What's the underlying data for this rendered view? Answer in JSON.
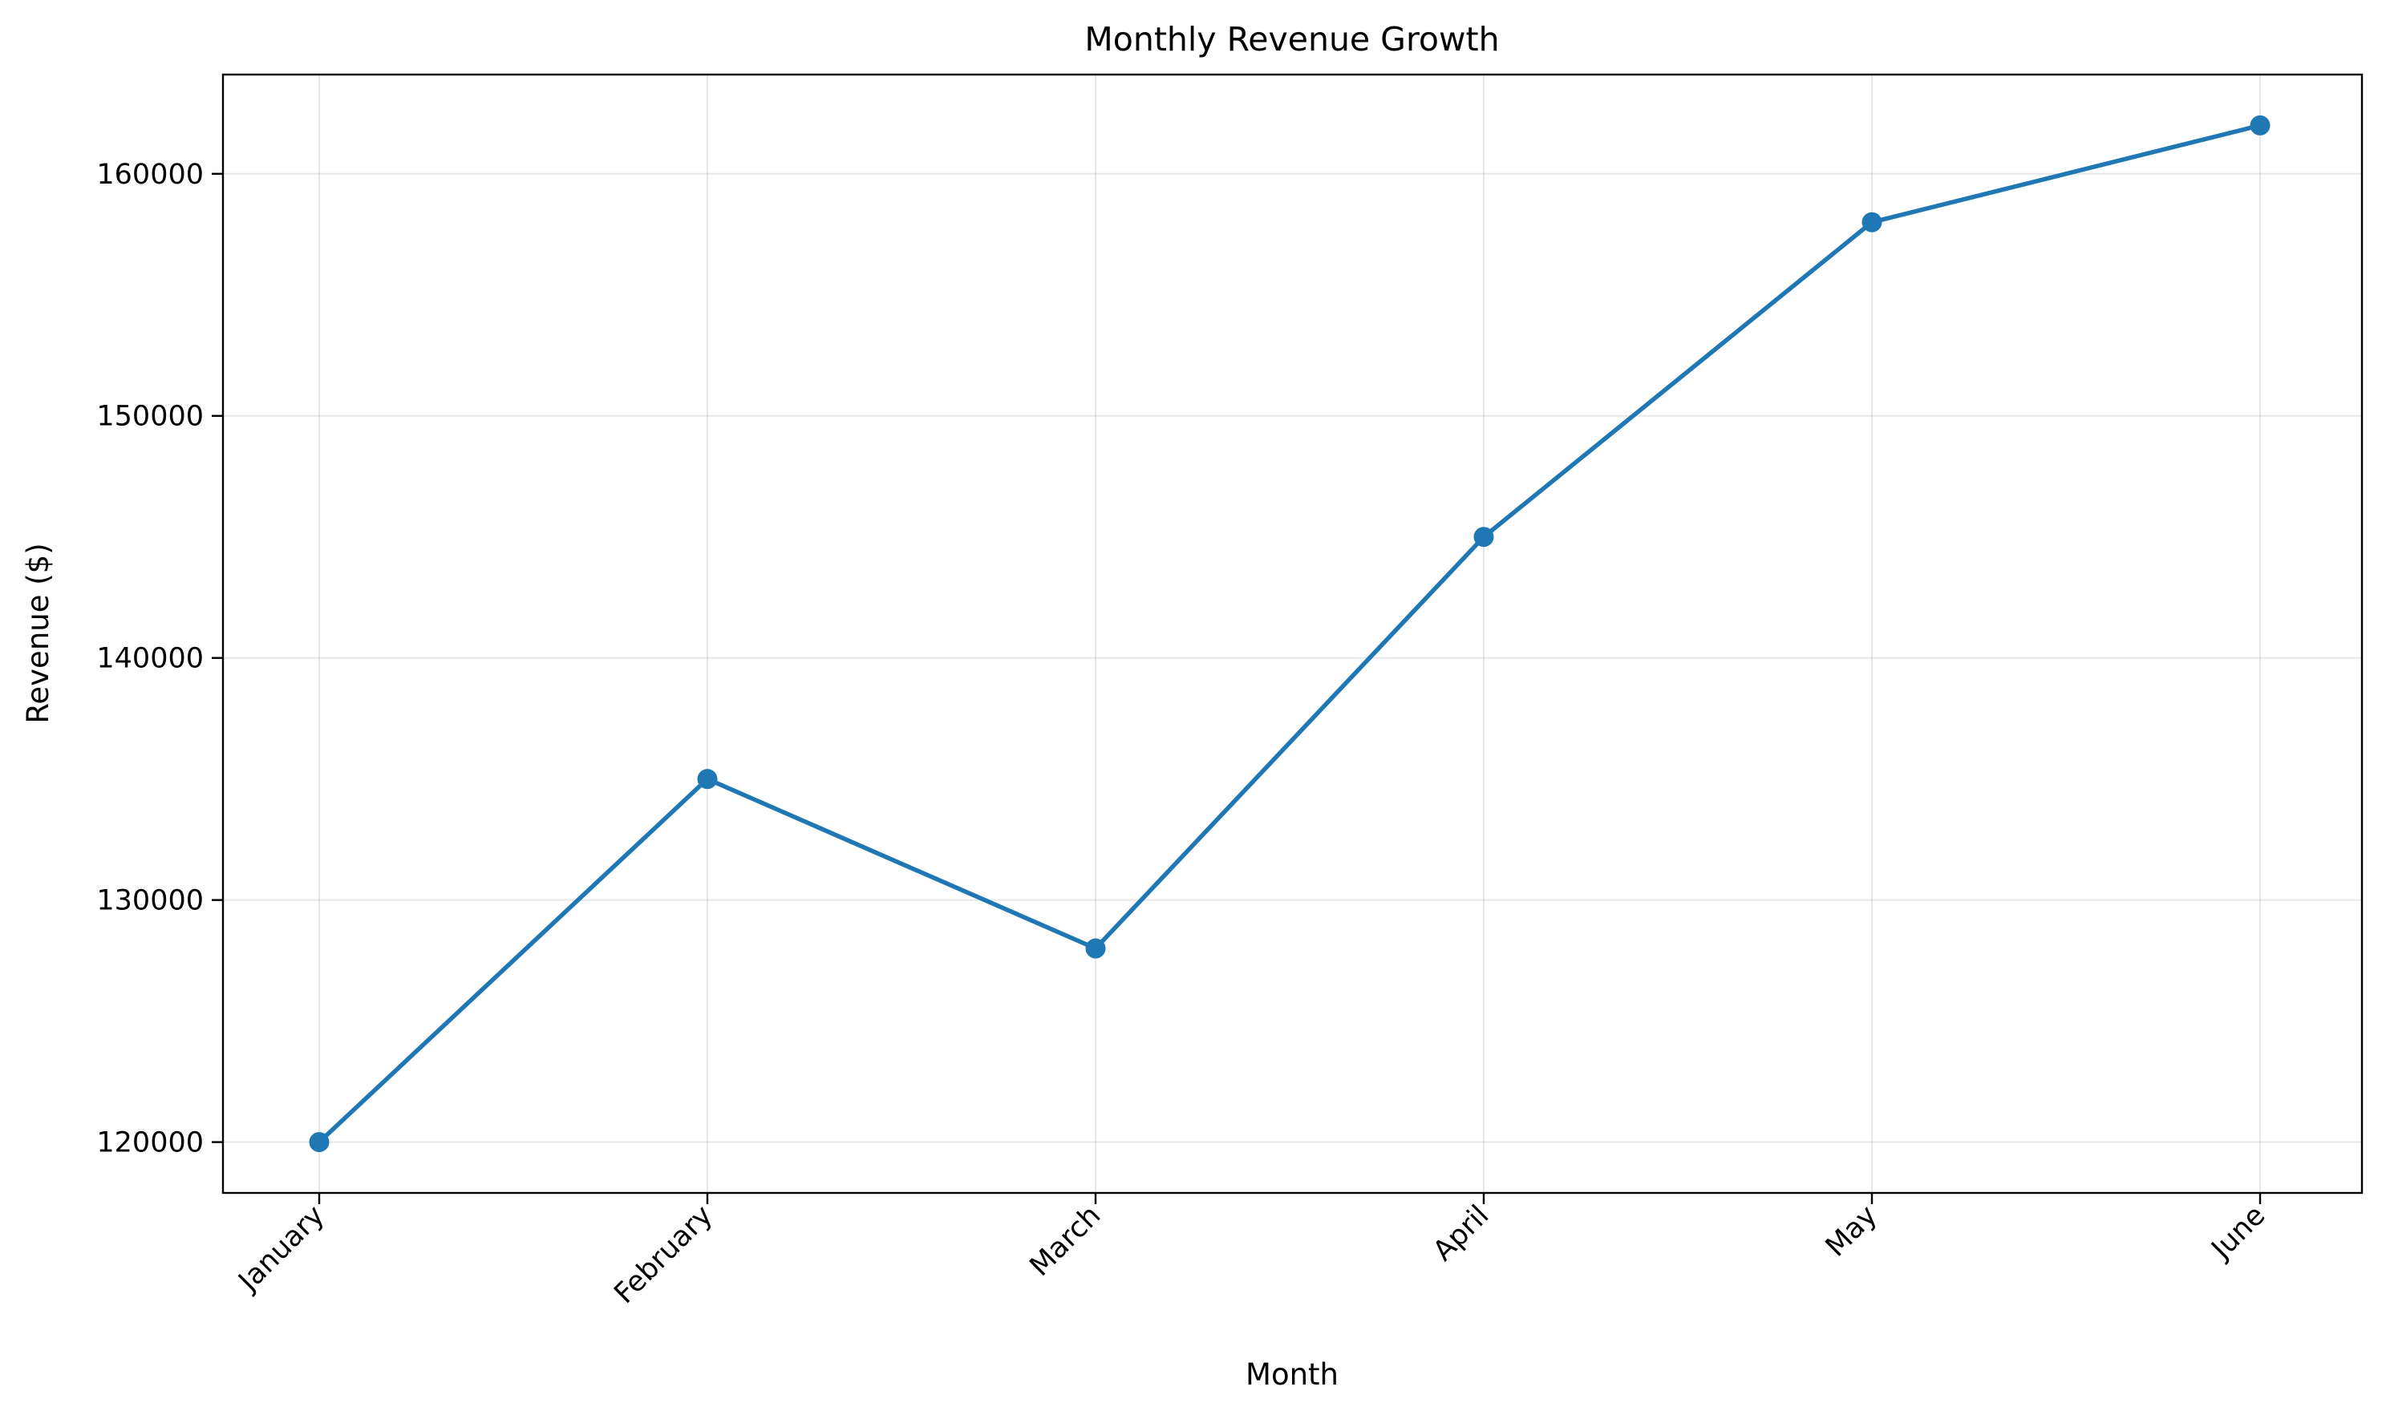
{
  "chart_data": {
    "type": "line",
    "title": "Monthly Revenue Growth",
    "xlabel": "Month",
    "ylabel": "Revenue ($)",
    "categories": [
      "January",
      "February",
      "March",
      "April",
      "May",
      "June"
    ],
    "series": [
      {
        "values": [
          120000,
          135000,
          128000,
          145000,
          158000,
          162000
        ],
        "color": "#1f77b4",
        "marker": "circle"
      }
    ],
    "ylim": [
      117900,
      164100
    ],
    "yticks": [
      120000,
      130000,
      140000,
      150000,
      160000
    ],
    "grid": true,
    "legend": "none"
  }
}
